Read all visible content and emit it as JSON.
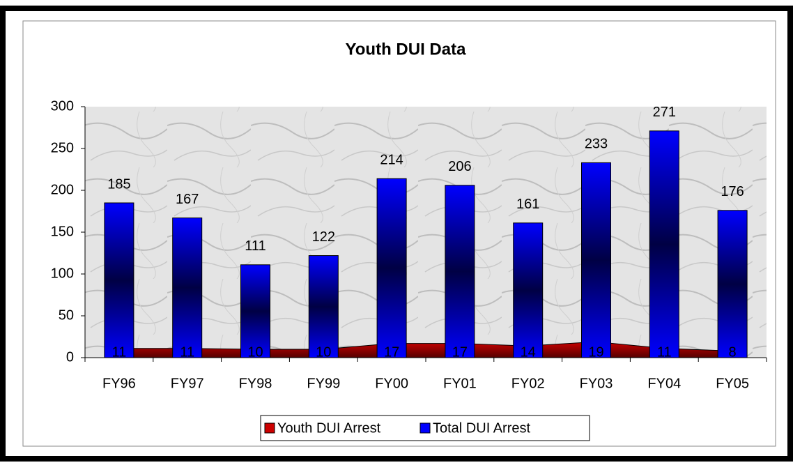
{
  "chart_data": {
    "type": "bar_area",
    "title": "Youth DUI Data",
    "categories": [
      "FY96",
      "FY97",
      "FY98",
      "FY99",
      "FY00",
      "FY01",
      "FY02",
      "FY03",
      "FY04",
      "FY05"
    ],
    "series": [
      {
        "name": "Youth DUI Arrest",
        "color": "#cc0000",
        "values": [
          11,
          11,
          10,
          10,
          17,
          17,
          14,
          19,
          11,
          8
        ]
      },
      {
        "name": "Total DUI Arrest",
        "color": "#0000ff",
        "values": [
          185,
          167,
          111,
          122,
          214,
          206,
          161,
          233,
          271,
          176
        ]
      }
    ],
    "ylim": [
      0,
      300
    ],
    "yticks": [
      0,
      50,
      100,
      150,
      200,
      250,
      300
    ],
    "legend": "bottom"
  }
}
